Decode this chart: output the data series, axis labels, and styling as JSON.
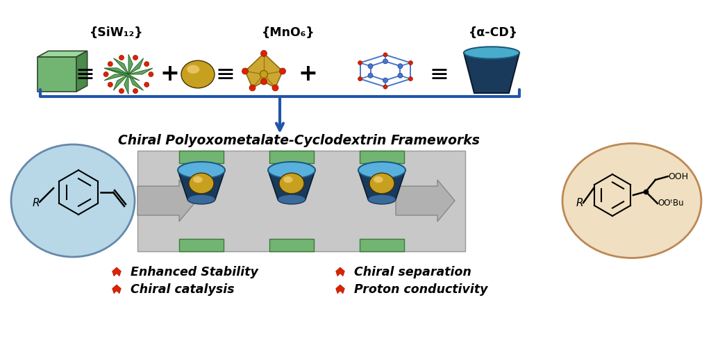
{
  "title": "Chiral Polyoxometalate-Cyclodextrin Frameworks",
  "label_siw": "{SiW₁₂}",
  "label_mno": "{MnO₆}",
  "label_acd": "{α-CD}",
  "bullet_items_left": [
    "Enhanced Stability",
    "Chiral catalysis"
  ],
  "bullet_items_right": [
    "Chiral separation",
    "Proton conductivity"
  ],
  "bg_color": "#ffffff",
  "top_bracket_color": "#2255aa",
  "green_box_color": "#6aaa6a",
  "pom_cluster_color": "#4a9a4a",
  "mn_sphere_color": "#c8a020",
  "cd_bowl_color": "#1a3a5c",
  "framework_bg": "#cccccc",
  "left_circle_color": "#b8d8e8",
  "right_circle_color": "#f0dfc0",
  "flame_color": "#dd2200"
}
